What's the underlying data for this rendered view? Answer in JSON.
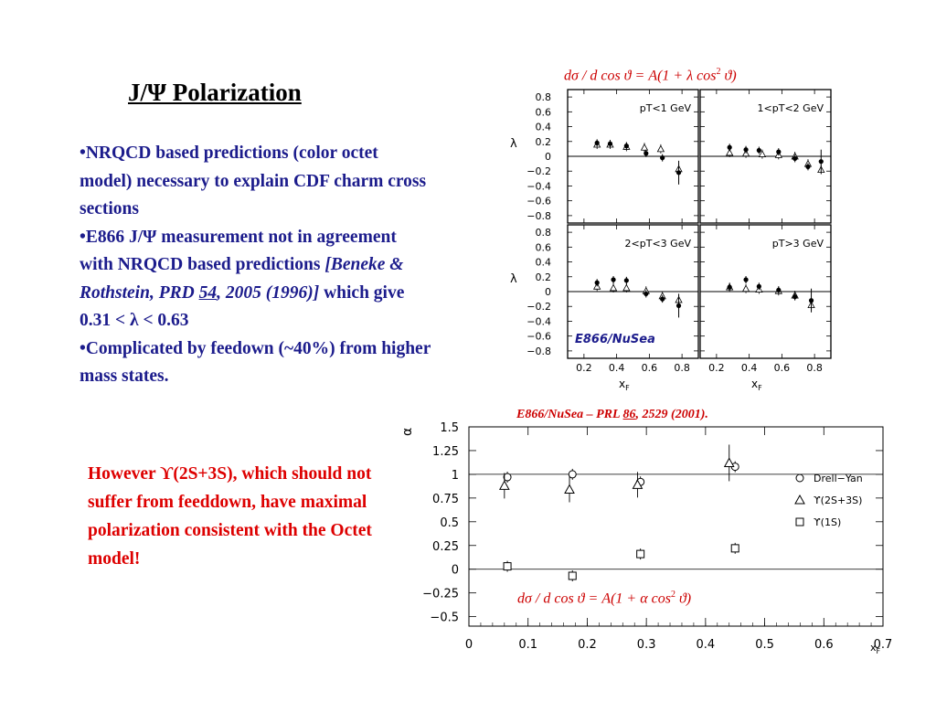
{
  "title": "J/Ψ Polarization",
  "bullets": {
    "b1": "•NRQCD based predictions (color octet model) necessary to explain CDF charm cross sections",
    "b2_start": "•E866 J/Ψ measurement not in agreement with NRQCD based predictions ",
    "b2_ref1": "[Beneke & Rothstein, PRD ",
    "b2_ref_vol": "54",
    "b2_ref2": ", 2005 (1996)]",
    "b2_end": " which give 0.31 < λ < 0.63",
    "b3": "•Complicated by feedown (~40%) from higher mass states."
  },
  "note": "However ϒ(2S+3S), which should not suffer from feeddown, have maximal polarization consistent with the Octet model!",
  "formulas": {
    "top": {
      "lhs": "dσ / d cos ϑ = ",
      "mid": "A(1 + λ cos",
      "sup": "2",
      "end": " ϑ)"
    },
    "bottom": {
      "lhs": "dσ / d cos ϑ = ",
      "mid": "A(1 + α cos",
      "sup": "2",
      "end": " ϑ)"
    }
  },
  "citation": {
    "pre": "E866/NuSea – PRL ",
    "vol": "86",
    "post": ", 2529 (2001)."
  },
  "chart_data": [
    {
      "type": "scatter",
      "ylabel": "λ",
      "xlabel": "xF",
      "ylim": [
        -0.9,
        0.9
      ],
      "xlim": [
        0.1,
        0.9
      ],
      "yticks": [
        "0.8",
        "0.6",
        "0.4",
        "0.2",
        "0",
        "−0.2",
        "−0.4",
        "−0.6",
        "−0.8"
      ],
      "xticks": [
        "0.2",
        "0.4",
        "0.6",
        "0.8",
        "0.2",
        "0.4",
        "0.6",
        "0.8"
      ],
      "inset_label": "E866/NuSea",
      "panels": [
        {
          "label": "pT<1 GeV",
          "filled": [
            [
              0.28,
              0.18
            ],
            [
              0.36,
              0.17
            ],
            [
              0.46,
              0.14
            ],
            [
              0.58,
              0.04
            ],
            [
              0.68,
              -0.02
            ],
            [
              0.78,
              -0.22
            ]
          ],
          "open": [
            [
              0.28,
              0.16
            ],
            [
              0.36,
              0.16
            ],
            [
              0.46,
              0.13
            ],
            [
              0.57,
              0.12
            ],
            [
              0.67,
              0.1
            ],
            [
              0.78,
              -0.17
            ]
          ]
        },
        {
          "label": "1<pT<2 GeV",
          "filled": [
            [
              0.28,
              0.12
            ],
            [
              0.38,
              0.09
            ],
            [
              0.46,
              0.08
            ],
            [
              0.58,
              0.06
            ],
            [
              0.68,
              -0.03
            ],
            [
              0.76,
              -0.14
            ],
            [
              0.84,
              -0.07
            ]
          ],
          "open": [
            [
              0.28,
              0.05
            ],
            [
              0.38,
              0.04
            ],
            [
              0.48,
              0.03
            ],
            [
              0.58,
              0.02
            ],
            [
              0.68,
              0.0
            ],
            [
              0.76,
              -0.1
            ],
            [
              0.84,
              -0.18
            ]
          ]
        },
        {
          "label": "2<pT<3 GeV",
          "filled": [
            [
              0.28,
              0.12
            ],
            [
              0.38,
              0.16
            ],
            [
              0.46,
              0.15
            ],
            [
              0.58,
              -0.03
            ],
            [
              0.68,
              -0.1
            ],
            [
              0.78,
              -0.19
            ]
          ],
          "open": [
            [
              0.28,
              0.07
            ],
            [
              0.38,
              0.05
            ],
            [
              0.46,
              0.05
            ],
            [
              0.58,
              0.01
            ],
            [
              0.68,
              -0.06
            ],
            [
              0.78,
              -0.11
            ]
          ]
        },
        {
          "label": "pT>3 GeV",
          "filled": [
            [
              0.28,
              0.06
            ],
            [
              0.38,
              0.16
            ],
            [
              0.46,
              0.07
            ],
            [
              0.58,
              0.02
            ],
            [
              0.68,
              -0.07
            ],
            [
              0.78,
              -0.12
            ]
          ],
          "open": [
            [
              0.28,
              0.06
            ],
            [
              0.38,
              0.04
            ],
            [
              0.46,
              0.03
            ],
            [
              0.58,
              0.01
            ],
            [
              0.68,
              -0.05
            ],
            [
              0.78,
              -0.18
            ]
          ]
        }
      ]
    },
    {
      "type": "scatter",
      "ylabel": "α",
      "xlabel": "xF",
      "ylim": [
        -0.6,
        1.5
      ],
      "xlim": [
        0,
        0.7
      ],
      "yticks": [
        "1.5",
        "1.25",
        "1",
        "0.75",
        "0.5",
        "0.25",
        "0",
        "−0.25",
        "−0.5"
      ],
      "xticks": [
        "0",
        "0.1",
        "0.2",
        "0.3",
        "0.4",
        "0.5",
        "0.6",
        "0.7"
      ],
      "series": [
        {
          "name": "Drell−Yan",
          "marker": "circle",
          "x": [
            0.065,
            0.175,
            0.29,
            0.45
          ],
          "values": [
            0.97,
            1.0,
            0.92,
            1.08
          ]
        },
        {
          "name": "ϒ(2S+3S)",
          "marker": "triangle",
          "x": [
            0.06,
            0.17,
            0.285,
            0.44
          ],
          "values": [
            0.88,
            0.84,
            0.89,
            1.12
          ]
        },
        {
          "name": "ϒ(1S)",
          "marker": "square",
          "x": [
            0.065,
            0.175,
            0.29,
            0.45
          ],
          "values": [
            0.03,
            -0.07,
            0.16,
            0.22
          ]
        }
      ]
    }
  ]
}
